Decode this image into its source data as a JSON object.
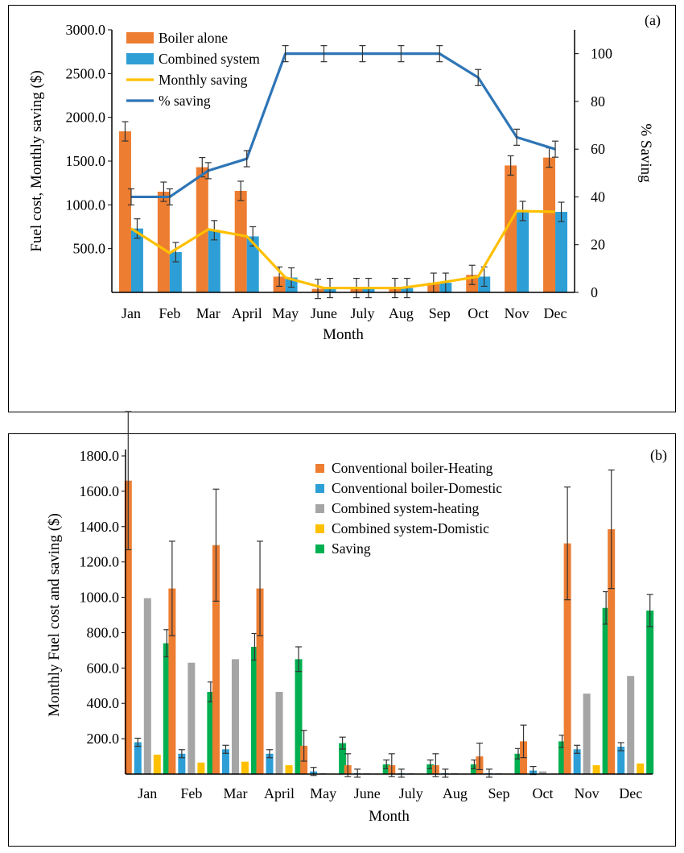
{
  "chart_data": [
    {
      "panel_label": "(a)",
      "type": "bar",
      "xlabel": "Month",
      "ylabel": "Fuel cost, Monthly saving ($)",
      "y2label": "% Saving",
      "ylim": [
        0,
        3000
      ],
      "y2lim": [
        0,
        110
      ],
      "yticks": [
        "500.0",
        "1000.0",
        "1500.0",
        "2000.0",
        "2500.0",
        "3000.0"
      ],
      "y2ticks": [
        "0",
        "20",
        "40",
        "60",
        "80",
        "100"
      ],
      "categories": [
        "Jan",
        "Feb",
        "Mar",
        "April",
        "May",
        "June",
        "July",
        "Aug",
        "Sep",
        "Oct",
        "Nov",
        "Dec"
      ],
      "legend_position": "top-left",
      "series": [
        {
          "name": "Boiler alone",
          "kind": "bar",
          "axis": "left",
          "color": "#ED7D31",
          "values": [
            1840,
            1150,
            1430,
            1160,
            180,
            40,
            50,
            50,
            110,
            200,
            1450,
            1540
          ]
        },
        {
          "name": "Combined system",
          "kind": "bar",
          "axis": "left",
          "color": "#2E9FD6",
          "values": [
            730,
            460,
            710,
            640,
            170,
            50,
            50,
            50,
            110,
            180,
            930,
            920
          ]
        },
        {
          "name": "Monthly saving",
          "kind": "line",
          "axis": "left",
          "color": "#FFC000",
          "values": [
            730,
            450,
            720,
            640,
            170,
            50,
            50,
            50,
            110,
            180,
            930,
            920
          ]
        },
        {
          "name": "% saving",
          "kind": "line",
          "axis": "right",
          "color": "#2E75B6",
          "values": [
            40,
            40,
            51,
            56,
            100,
            100,
            100,
            100,
            100,
            90,
            65,
            60
          ]
        }
      ]
    },
    {
      "panel_label": "(b)",
      "type": "bar",
      "xlabel": "Month",
      "ylabel": "Monthly Fuel cost and  saving ($)",
      "ylim": [
        0,
        1800
      ],
      "yticks": [
        "200.0",
        "400.0",
        "600.0",
        "800.0",
        "1000.0",
        "1200.0",
        "1400.0",
        "1600.0",
        "1800.0"
      ],
      "categories": [
        "Jan",
        "Feb",
        "Mar",
        "April",
        "May",
        "June",
        "July",
        "Aug",
        "Sep",
        "Oct",
        "Nov",
        "Dec"
      ],
      "legend_position": "top-center",
      "series": [
        {
          "name": "Conventional boiler-Heating",
          "color": "#ED7D31",
          "values": [
            1660,
            1050,
            1295,
            1050,
            160,
            50,
            50,
            50,
            100,
            185,
            1305,
            1385
          ]
        },
        {
          "name": "Conventional boiler-Domestic",
          "color": "#2E9FD6",
          "values": [
            180,
            115,
            140,
            115,
            15,
            5,
            5,
            5,
            5,
            20,
            140,
            155
          ]
        },
        {
          "name": "Combined system-heating",
          "color": "#A5A5A5",
          "values": [
            995,
            630,
            650,
            465,
            5,
            5,
            5,
            5,
            5,
            15,
            455,
            555
          ]
        },
        {
          "name": "Combined system-Domistic",
          "color": "#FFC000",
          "values": [
            110,
            65,
            70,
            50,
            3,
            3,
            3,
            3,
            3,
            3,
            50,
            60
          ]
        },
        {
          "name": "Saving",
          "color": "#00B050",
          "values": [
            740,
            465,
            720,
            650,
            175,
            55,
            55,
            55,
            115,
            185,
            940,
            925
          ]
        }
      ]
    }
  ]
}
